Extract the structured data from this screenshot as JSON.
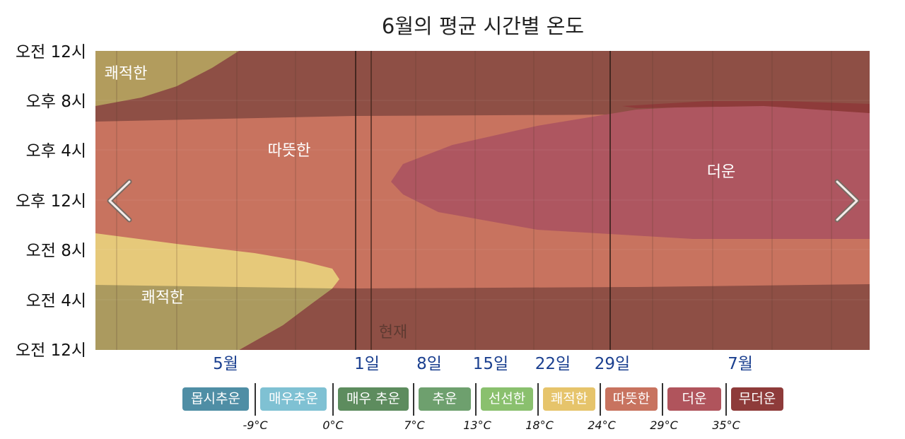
{
  "chart_data": {
    "type": "heatmap",
    "title": "6월의 평균 시간별 온도",
    "y_ticks": [
      "오전 12시",
      "오후 8시",
      "오후 4시",
      "오후 12시",
      "오전 8시",
      "오전 4시",
      "오전 12시"
    ],
    "x_labels": [
      "5월",
      "1일",
      "8일",
      "15일",
      "22일",
      "29일",
      "7월"
    ],
    "zones": [
      {
        "label": "쾌적한",
        "category": "쾌적한"
      },
      {
        "label": "따뜻한",
        "category": "따뜻한"
      },
      {
        "label": "더운",
        "category": "더운"
      },
      {
        "label": "쾌적한",
        "category": "쾌적한"
      }
    ],
    "now_label": "현재",
    "legend": [
      {
        "label": "몹시추운",
        "color": "#4f8ea5"
      },
      {
        "label": "매우추운",
        "color": "#7fc1d3"
      },
      {
        "label": "매우 추운",
        "color": "#5d8c5e"
      },
      {
        "label": "추운",
        "color": "#6ea06e"
      },
      {
        "label": "선선한",
        "color": "#8ac06e"
      },
      {
        "label": "쾌적한",
        "color": "#e6c46b"
      },
      {
        "label": "따뜻한",
        "color": "#c8735f"
      },
      {
        "label": "더운",
        "color": "#b0545c"
      },
      {
        "label": "무더운",
        "color": "#8e3b3a"
      }
    ],
    "thresholds": [
      "-9°C",
      "0°C",
      "7°C",
      "13°C",
      "18°C",
      "24°C",
      "29°C",
      "35°C"
    ]
  },
  "nav": {
    "prev": "previous-month",
    "next": "next-month"
  }
}
